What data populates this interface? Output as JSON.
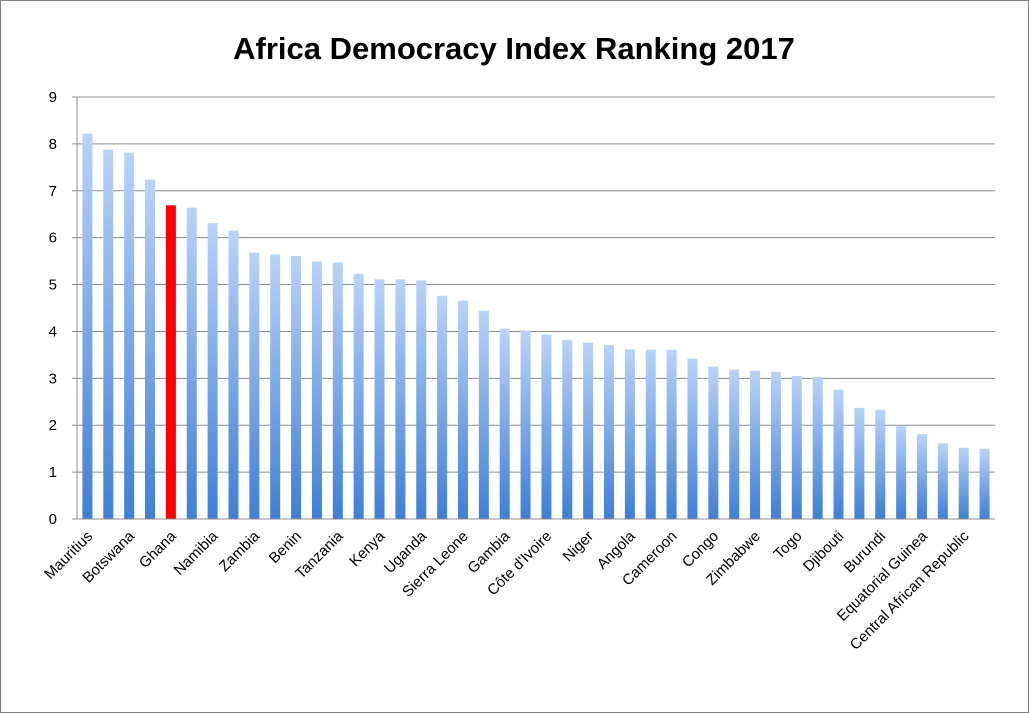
{
  "chart_data": {
    "type": "bar",
    "title": "Africa Democracy Index Ranking 2017",
    "xlabel": "",
    "ylabel": "",
    "ylim": [
      0,
      9
    ],
    "yticks": [
      0,
      1,
      2,
      3,
      4,
      5,
      6,
      7,
      8,
      9
    ],
    "grid": true,
    "legend": "none",
    "highlight_category": "Ghana",
    "colors": {
      "bar_top": "#b9d3f8",
      "bar_bottom": "#3f7fd4",
      "highlight": "#ff0000",
      "grid": "#8c8c8c"
    },
    "categories": [
      "Mauritius",
      "",
      "Botswana",
      "",
      "Ghana",
      "",
      "Namibia",
      "",
      "Zambia",
      "",
      "Benin",
      "",
      "Tanzania",
      "",
      "Kenya",
      "",
      "Uganda",
      "",
      "Sierra Leone",
      "",
      "Gambia",
      "",
      "Côte d'Ivoire",
      "",
      "Niger",
      "",
      "Angola",
      "",
      "Cameroon",
      "",
      "Congo",
      "",
      "Zimbabwe",
      "",
      "Togo",
      "",
      "Djibouti",
      "",
      "Burundi",
      "",
      "Equatorial Guinea",
      "",
      "Central African Republic",
      ""
    ],
    "values": [
      8.22,
      7.88,
      7.81,
      7.24,
      6.69,
      6.64,
      6.31,
      6.15,
      5.68,
      5.64,
      5.61,
      5.49,
      5.47,
      5.23,
      5.11,
      5.11,
      5.09,
      4.76,
      4.66,
      4.44,
      4.06,
      4.02,
      3.93,
      3.82,
      3.76,
      3.71,
      3.62,
      3.61,
      3.61,
      3.42,
      3.25,
      3.19,
      3.16,
      3.14,
      3.05,
      3.03,
      2.76,
      2.37,
      2.33,
      1.98,
      1.81,
      1.61,
      1.52,
      1.5
    ]
  }
}
